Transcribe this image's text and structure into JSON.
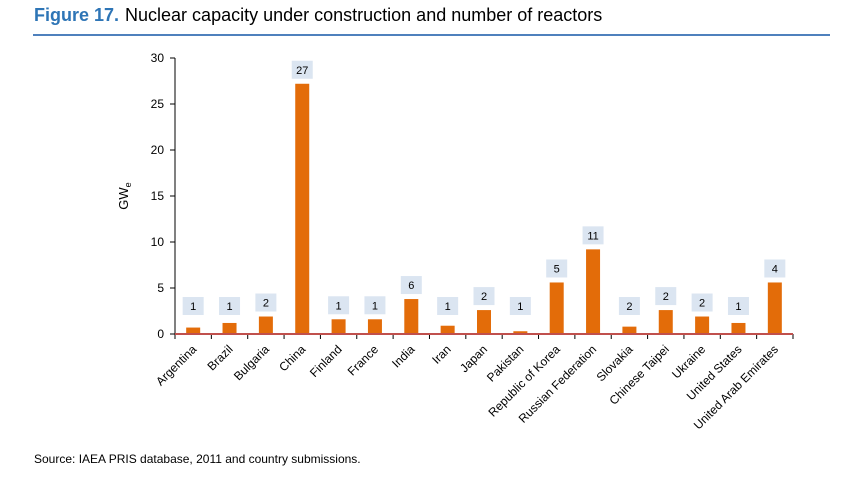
{
  "figure": {
    "number": "Figure 17.",
    "title": "Nuclear capacity under construction and number of reactors"
  },
  "source": "Source: IAEA PRIS database, 2011 and country submissions.",
  "colors": {
    "bar": "#e36c09",
    "baseline": "#c0504d",
    "label_box": "#dbe5f1",
    "title_number": "#2e75b6",
    "rule": "#4f81bd"
  },
  "chart_data": {
    "type": "bar",
    "ylabel": "GWe",
    "ylim": [
      0,
      30
    ],
    "yticks": [
      0,
      5,
      10,
      15,
      20,
      25,
      30
    ],
    "grid": false,
    "categories": [
      "Argentina",
      "Brazil",
      "Bulgaria",
      "China",
      "Finland",
      "France",
      "India",
      "Iran",
      "Japan",
      "Pakistan",
      "Republic of Korea",
      "Russian Federation",
      "Slovakia",
      "Chinese Taipei",
      "Ukraine",
      "United States",
      "United Arab Emirates"
    ],
    "series": [
      {
        "values": [
          0.7,
          1.2,
          1.9,
          27.2,
          1.6,
          1.6,
          3.8,
          0.9,
          2.6,
          0.3,
          5.6,
          9.2,
          0.8,
          2.6,
          1.9,
          1.2,
          5.6
        ]
      }
    ],
    "reactor_counts": [
      1,
      1,
      2,
      27,
      1,
      1,
      6,
      1,
      2,
      1,
      5,
      11,
      2,
      2,
      2,
      1,
      4
    ]
  }
}
